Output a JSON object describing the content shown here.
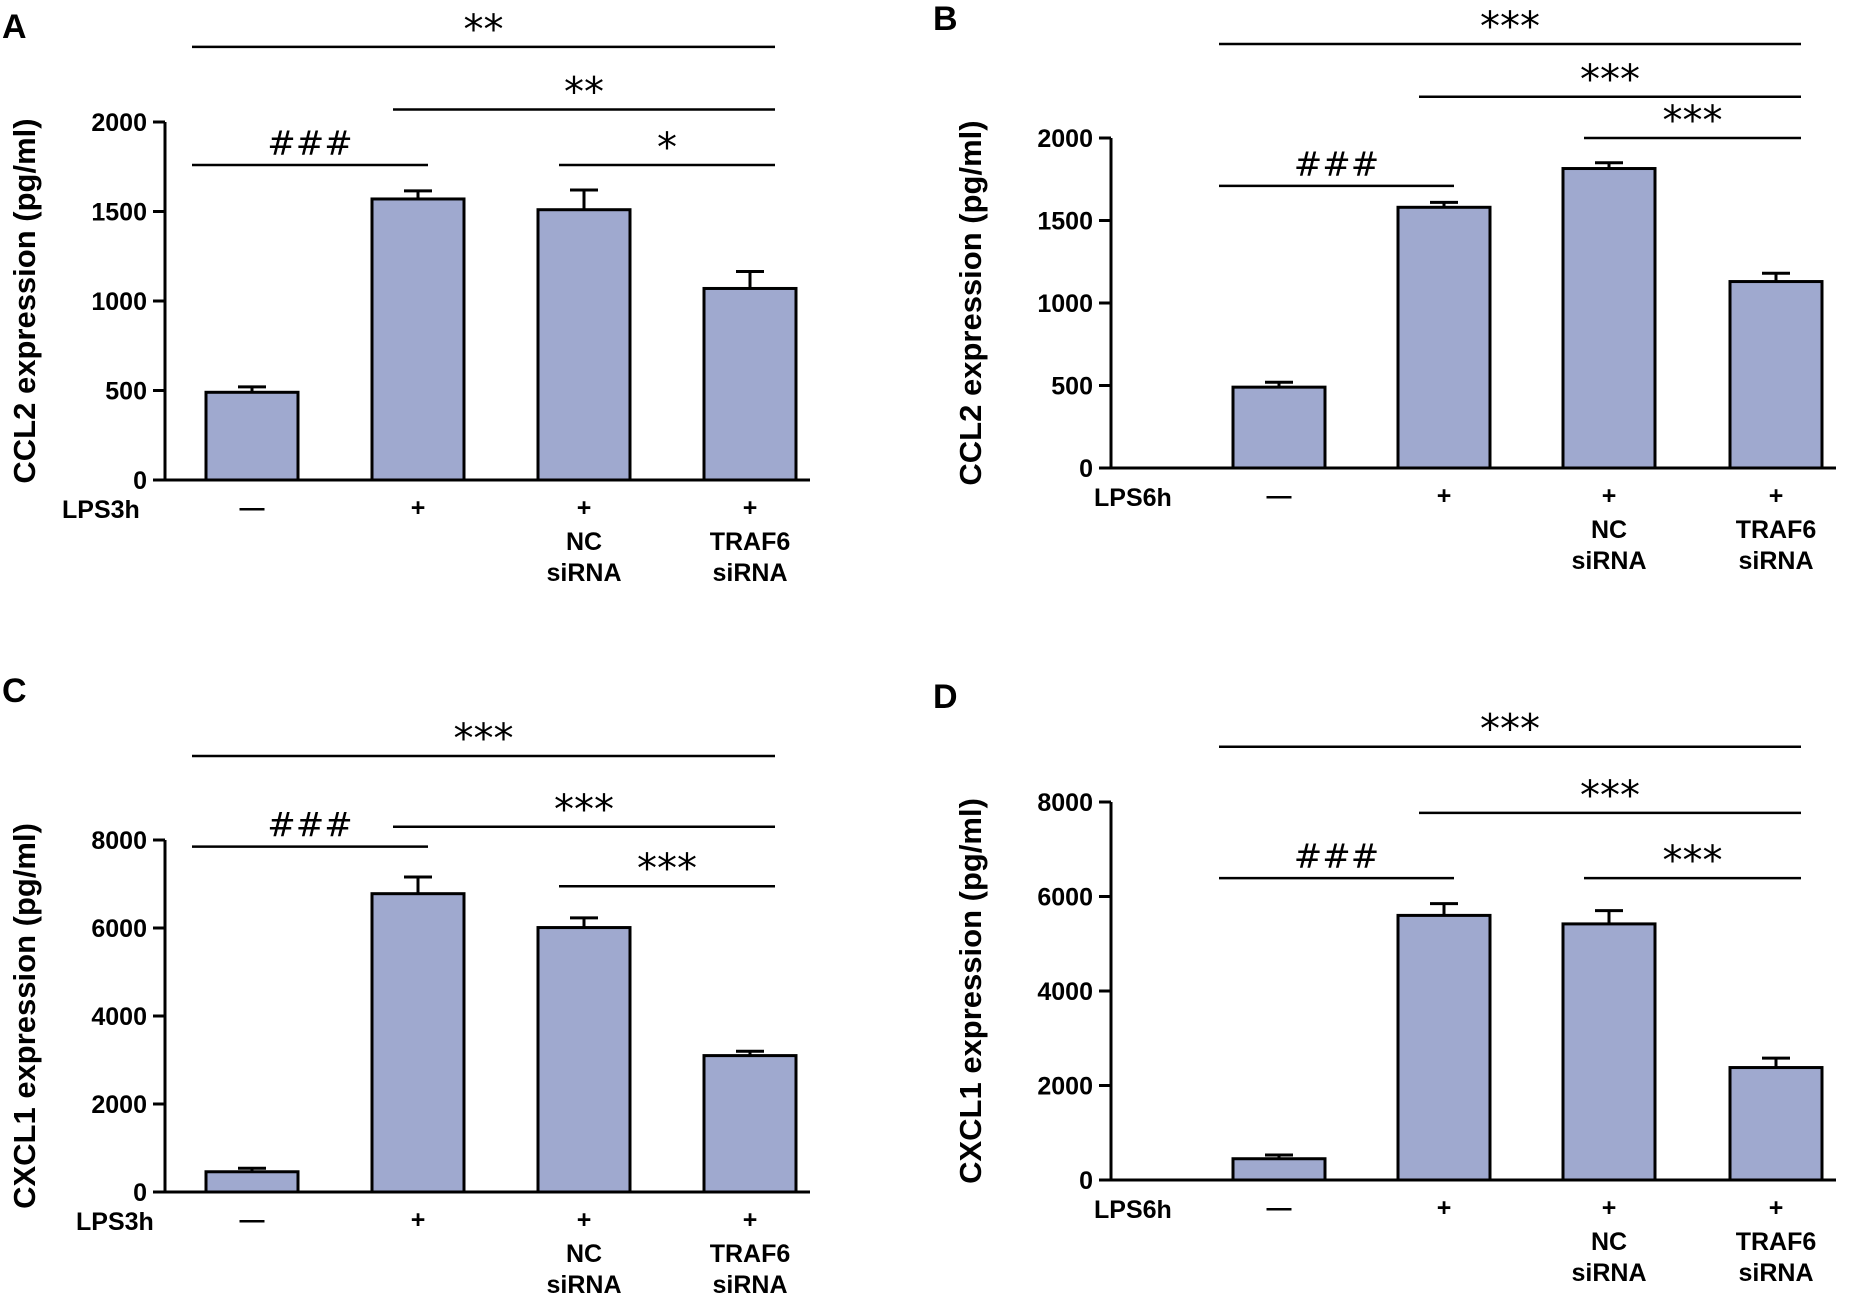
{
  "colors": {
    "bar_fill": "#9fa9cf",
    "axis": "#000000"
  },
  "chart_data": [
    {
      "panel": "A",
      "type": "bar",
      "ylabel": "CCL2 expression (pg/ml)",
      "yticks": [
        0,
        500,
        1000,
        1500,
        2000
      ],
      "ylim": [
        0,
        2000
      ],
      "treatment_label": "LPS3h",
      "categories": [
        "—",
        "+",
        "+",
        "+"
      ],
      "sublabels": [
        [],
        [],
        [
          "NC",
          "siRNA"
        ],
        [
          "TRAF6",
          "siRNA"
        ]
      ],
      "values": [
        490,
        1570,
        1510,
        1070
      ],
      "errors": [
        30,
        45,
        110,
        95
      ],
      "significance": [
        {
          "from": 0,
          "to": 3,
          "label": "**",
          "y": 2420
        },
        {
          "from": 1,
          "to": 3,
          "label": "**",
          "y": 2070
        },
        {
          "from": 2,
          "to": 3,
          "label": "*",
          "y": 1760
        },
        {
          "from": 0,
          "to": 1,
          "label": "###",
          "y": 1760
        }
      ]
    },
    {
      "panel": "B",
      "type": "bar",
      "ylabel": "CCL2 expression (pg/ml)",
      "yticks": [
        0,
        500,
        1000,
        1500,
        2000
      ],
      "ylim": [
        0,
        2000
      ],
      "treatment_label": "LPS6h",
      "categories": [
        "—",
        "+",
        "+",
        "+"
      ],
      "sublabels": [
        [],
        [],
        [
          "NC",
          "siRNA"
        ],
        [
          "TRAF6",
          "siRNA"
        ]
      ],
      "values": [
        490,
        1580,
        1815,
        1130
      ],
      "errors": [
        30,
        30,
        35,
        50
      ],
      "significance": [
        {
          "from": 0,
          "to": 3,
          "label": "***",
          "y": 2570
        },
        {
          "from": 1,
          "to": 3,
          "label": "***",
          "y": 2250
        },
        {
          "from": 2,
          "to": 3,
          "label": "***",
          "y": 2000
        },
        {
          "from": 0,
          "to": 1,
          "label": "###",
          "y": 1710
        }
      ]
    },
    {
      "panel": "C",
      "type": "bar",
      "ylabel": "CXCL1 expression (pg/ml)",
      "yticks": [
        0,
        2000,
        4000,
        6000,
        8000
      ],
      "ylim": [
        0,
        8000
      ],
      "treatment_label": "LPS3h",
      "categories": [
        "—",
        "+",
        "+",
        "+"
      ],
      "sublabels": [
        [],
        [],
        [
          "NC",
          "siRNA"
        ],
        [
          "TRAF6",
          "siRNA"
        ]
      ],
      "values": [
        460,
        6780,
        6010,
        3100
      ],
      "errors": [
        80,
        380,
        220,
        100
      ],
      "significance": [
        {
          "from": 0,
          "to": 3,
          "label": "***",
          "y": 9910
        },
        {
          "from": 1,
          "to": 3,
          "label": "***",
          "y": 8300
        },
        {
          "from": 2,
          "to": 3,
          "label": "***",
          "y": 6950
        },
        {
          "from": 0,
          "to": 1,
          "label": "###",
          "y": 7850
        }
      ]
    },
    {
      "panel": "D",
      "type": "bar",
      "ylabel": "CXCL1 expression (pg/ml)",
      "yticks": [
        0,
        2000,
        4000,
        6000,
        8000
      ],
      "ylim": [
        0,
        8000
      ],
      "treatment_label": "LPS6h",
      "categories": [
        "—",
        "+",
        "+",
        "+"
      ],
      "sublabels": [
        [],
        [],
        [
          "NC",
          "siRNA"
        ],
        [
          "TRAF6",
          "siRNA"
        ]
      ],
      "values": [
        450,
        5600,
        5420,
        2380
      ],
      "errors": [
        80,
        250,
        280,
        200
      ],
      "significance": [
        {
          "from": 0,
          "to": 3,
          "label": "***",
          "y": 9170
        },
        {
          "from": 1,
          "to": 3,
          "label": "***",
          "y": 7770
        },
        {
          "from": 2,
          "to": 3,
          "label": "***",
          "y": 6390
        },
        {
          "from": 0,
          "to": 1,
          "label": "###",
          "y": 6390
        }
      ]
    }
  ]
}
